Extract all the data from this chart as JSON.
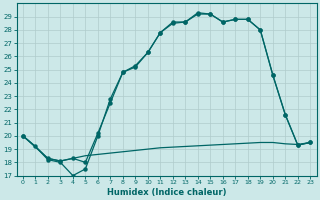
{
  "xlabel": "Humidex (Indice chaleur)",
  "bg_color": "#cce8e8",
  "line_color": "#006666",
  "grid_color": "#b0cccc",
  "xlim": [
    -0.5,
    23.5
  ],
  "ylim": [
    17,
    30
  ],
  "yticks": [
    17,
    18,
    19,
    20,
    21,
    22,
    23,
    24,
    25,
    26,
    27,
    28,
    29
  ],
  "xticks": [
    0,
    1,
    2,
    3,
    4,
    5,
    6,
    7,
    8,
    9,
    10,
    11,
    12,
    13,
    14,
    15,
    16,
    17,
    18,
    19,
    20,
    21,
    22,
    23
  ],
  "curve1_x": [
    0,
    1,
    2,
    3,
    4,
    5,
    6,
    7,
    8,
    9,
    10,
    11,
    12,
    13,
    14,
    15,
    16,
    17,
    18,
    19,
    20,
    21,
    22,
    23
  ],
  "curve1_y": [
    20.0,
    19.2,
    18.2,
    18.0,
    17.0,
    17.5,
    20.0,
    22.8,
    24.8,
    25.3,
    26.3,
    27.8,
    28.6,
    28.6,
    29.3,
    29.2,
    28.6,
    28.8,
    28.8,
    28.0,
    24.6,
    21.6,
    19.3,
    19.5
  ],
  "curve2_x": [
    0,
    1,
    2,
    3,
    4,
    5,
    6,
    7,
    8,
    9,
    10,
    11,
    12,
    13,
    14,
    15,
    16,
    17,
    18,
    19,
    20,
    21,
    22,
    23
  ],
  "curve2_y": [
    20.0,
    19.2,
    18.3,
    18.1,
    18.3,
    18.5,
    18.6,
    18.7,
    18.8,
    18.9,
    19.0,
    19.1,
    19.15,
    19.2,
    19.25,
    19.3,
    19.35,
    19.4,
    19.45,
    19.5,
    19.5,
    19.4,
    19.35,
    19.5
  ],
  "curve3_x": [
    0,
    2,
    3,
    4,
    5,
    6,
    7,
    8,
    9,
    10,
    11,
    12,
    13,
    14,
    15,
    16,
    17,
    18,
    19,
    20,
    21,
    22,
    23
  ],
  "curve3_y": [
    20.0,
    18.3,
    18.1,
    18.3,
    18.0,
    20.2,
    22.5,
    24.8,
    25.2,
    26.3,
    27.8,
    28.5,
    28.6,
    29.2,
    29.2,
    28.6,
    28.8,
    28.8,
    28.0,
    24.6,
    21.6,
    19.3,
    19.5
  ],
  "lw": 0.9,
  "markersize": 2.2
}
